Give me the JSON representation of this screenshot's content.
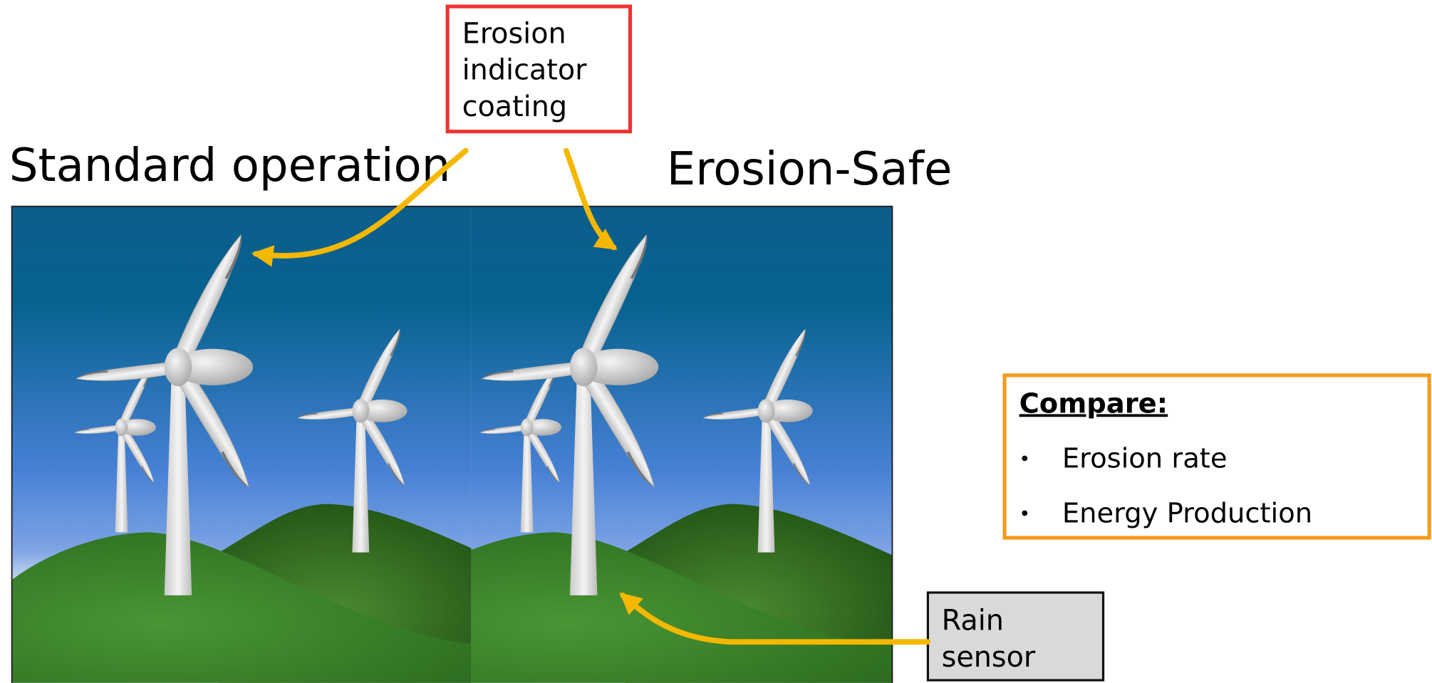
{
  "titles": {
    "left": "Standard operation",
    "right": "Erosion-Safe"
  },
  "callouts": {
    "coating": [
      "Erosion",
      "indicator",
      "coating"
    ],
    "sensor": [
      "Rain",
      "sensor"
    ]
  },
  "compare": {
    "heading": "Compare:",
    "items": [
      "Erosion rate",
      "Energy Production"
    ]
  }
}
